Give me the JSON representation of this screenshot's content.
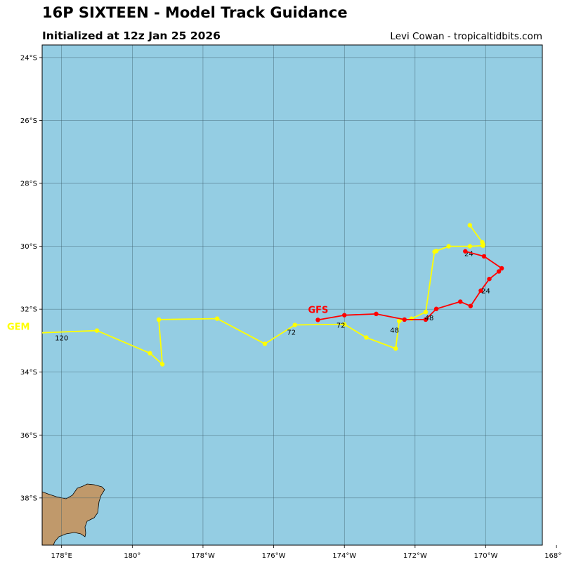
{
  "header": {
    "title": "16P SIXTEEN - Model Track Guidance",
    "subtitle": "Initialized at 12z Jan 25 2026",
    "credit": "Levi Cowan - tropicaltidbits.com"
  },
  "map": {
    "ocean_color": "#94cde3",
    "land_color": "#c0996b",
    "grid_color": "#3a5a66",
    "lon_range": [
      177.45,
      191.6
    ],
    "lat_range": [
      -39.5,
      -23.6
    ],
    "x_ticks": [
      {
        "lon": 178,
        "label": "178°E"
      },
      {
        "lon": 180,
        "label": "180°"
      },
      {
        "lon": 182,
        "label": "178°W"
      },
      {
        "lon": 184,
        "label": "176°W"
      },
      {
        "lon": 186,
        "label": "174°W"
      },
      {
        "lon": 188,
        "label": "172°W"
      },
      {
        "lon": 190,
        "label": "170°W"
      },
      {
        "lon": 192,
        "label": "168°W"
      }
    ],
    "y_ticks": [
      {
        "lat": -24,
        "label": "24°S"
      },
      {
        "lat": -26,
        "label": "26°S"
      },
      {
        "lat": -28,
        "label": "28°S"
      },
      {
        "lat": -30,
        "label": "30°S"
      },
      {
        "lat": -32,
        "label": "32°S"
      },
      {
        "lat": -34,
        "label": "34°S"
      },
      {
        "lat": -36,
        "label": "36°S"
      },
      {
        "lat": -38,
        "label": "38°S"
      }
    ]
  },
  "chart_data": {
    "type": "line",
    "x_axis": "longitude (degrees east)",
    "y_axis": "latitude (degrees north)",
    "series": [
      {
        "name": "GFS",
        "color": "#ff0000",
        "points": [
          [
            189.42,
            -30.16
          ],
          [
            189.95,
            -30.32
          ],
          [
            190.45,
            -30.7
          ],
          [
            190.37,
            -30.8
          ],
          [
            190.1,
            -31.04
          ],
          [
            189.86,
            -31.41
          ],
          [
            189.57,
            -31.9
          ],
          [
            189.28,
            -31.76
          ],
          [
            188.6,
            -31.99
          ],
          [
            188.3,
            -32.33
          ],
          [
            187.7,
            -32.33
          ],
          [
            186.9,
            -32.15
          ],
          [
            186.0,
            -32.19
          ],
          [
            185.25,
            -32.34
          ]
        ],
        "hour_labels": [
          {
            "text": "24",
            "lon": 190.0,
            "lat": -31.4
          },
          {
            "text": "48",
            "lon": 188.4,
            "lat": -32.26
          },
          {
            "text": "72",
            "lon": 185.9,
            "lat": -32.5
          }
        ]
      },
      {
        "name": "GEM",
        "color": "#ffff00",
        "points": [
          [
            189.55,
            -29.33
          ],
          [
            189.9,
            -29.87
          ],
          [
            189.92,
            -29.94
          ],
          [
            189.92,
            -29.98
          ],
          [
            189.55,
            -30.0
          ],
          [
            188.95,
            -30.0
          ],
          [
            188.6,
            -30.15
          ],
          [
            188.55,
            -30.17
          ],
          [
            188.3,
            -32.09
          ],
          [
            187.9,
            -32.3
          ],
          [
            187.55,
            -32.38
          ],
          [
            187.45,
            -33.25
          ],
          [
            186.62,
            -32.9
          ],
          [
            186.0,
            -32.48
          ],
          [
            184.6,
            -32.5
          ],
          [
            183.75,
            -33.1
          ],
          [
            182.4,
            -32.3
          ],
          [
            180.75,
            -32.33
          ],
          [
            180.85,
            -33.75
          ],
          [
            180.5,
            -33.4
          ],
          [
            179.0,
            -32.68
          ],
          [
            177.45,
            -32.75
          ]
        ],
        "hour_labels": [
          {
            "text": "24",
            "lon": 189.52,
            "lat": -30.22
          },
          {
            "text": "48",
            "lon": 187.42,
            "lat": -32.66
          },
          {
            "text": "72",
            "lon": 184.5,
            "lat": -32.72
          },
          {
            "text": "120",
            "lon": 178.0,
            "lat": -32.9
          }
        ]
      }
    ]
  }
}
